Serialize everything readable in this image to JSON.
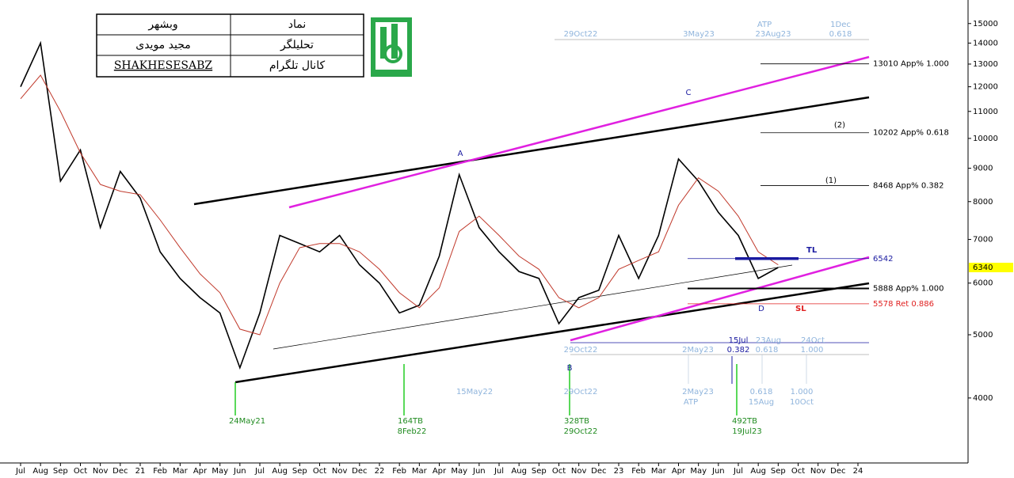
{
  "header": {
    "rows": [
      [
        "وبشهر",
        "نماد"
      ],
      [
        "مجید مویدی",
        "تحلیلگر"
      ],
      [
        "SHAKHESESABZ",
        "کانال تلگرام"
      ]
    ]
  },
  "chart_data": {
    "type": "line",
    "categories": [
      "Jul",
      "Aug",
      "Sep",
      "Oct",
      "Nov",
      "Dec",
      "21",
      "Feb",
      "Mar",
      "Apr",
      "May",
      "Jun",
      "Jul",
      "Aug",
      "Sep",
      "Oct",
      "Nov",
      "Dec",
      "22",
      "Feb",
      "Mar",
      "Apr",
      "May",
      "Jun",
      "Jul",
      "Aug",
      "Sep",
      "Oct",
      "Nov",
      "Dec",
      "23",
      "Feb",
      "Mar",
      "Apr",
      "May",
      "Jun",
      "Jul",
      "Aug",
      "Sep",
      "Oct",
      "Nov",
      "Dec",
      "24"
    ],
    "series": [
      {
        "color": "#000000",
        "values": [
          12000,
          14000,
          8600,
          9600,
          7300,
          8900,
          8100,
          6700,
          6100,
          5700,
          5400,
          4450,
          5400,
          7100,
          6900,
          6700,
          7100,
          6400,
          6000,
          5400,
          5550,
          6600,
          8800,
          7300,
          6700,
          6250,
          6100,
          5200,
          5700,
          5850,
          7100,
          6100,
          7100,
          9300,
          8600,
          7700,
          7100,
          6100,
          6340,
          null,
          null,
          null,
          null
        ]
      },
      {
        "color": "#c0392b",
        "values": [
          11500,
          12500,
          11000,
          9500,
          8500,
          8300,
          8200,
          7500,
          6800,
          6200,
          5800,
          5100,
          5000,
          6000,
          6800,
          6900,
          6900,
          6700,
          6300,
          5800,
          5500,
          5900,
          7200,
          7600,
          7100,
          6600,
          6300,
          5700,
          5500,
          5700,
          6300,
          6500,
          6700,
          7900,
          8700,
          8300,
          7600,
          6700,
          6400,
          null,
          null,
          null,
          null
        ]
      }
    ],
    "ylim": [
      3180,
      16300
    ],
    "yticks": [
      4000,
      5000,
      6000,
      7000,
      8000,
      9000,
      10000,
      11000,
      12000,
      13000,
      14000,
      15000
    ],
    "log": true,
    "current_price": 6340,
    "levels": [
      {
        "value": 13010,
        "label": "13010 App% 1.000",
        "color": "#000000"
      },
      {
        "value": 10202,
        "label": "10202 App% 0.618",
        "color": "#000000"
      },
      {
        "value": 8468,
        "label": "8468 App% 0.382",
        "color": "#000000"
      },
      {
        "value": 6542,
        "color": "#1a1aa0"
      },
      {
        "value": 5888,
        "label": "5888 App% 1.000",
        "color": "#000000"
      },
      {
        "value": 5578,
        "label": "5578 Ret 0.886",
        "color": "#e02020"
      }
    ],
    "wave_labels": [
      "A",
      "B",
      "C",
      "D",
      "(1)",
      "(2)"
    ],
    "line_labels": [
      "TL",
      "SL"
    ],
    "time_labels": [
      "29Oct22",
      "3May23",
      "ATP",
      "23Aug23",
      "1Dec",
      "0.618",
      "15Jul",
      "0.382",
      "23Aug",
      "0.618",
      "24Oct",
      "1.000",
      "29Oct22",
      "2May23",
      "15May22",
      "29Oct22",
      "2May23",
      "ATP",
      "0.618",
      "15Aug",
      "1.000",
      "10Oct",
      "24May21",
      "164TB",
      "8Feb22",
      "328TB",
      "29Oct22",
      "492TB",
      "19Jul23"
    ]
  }
}
